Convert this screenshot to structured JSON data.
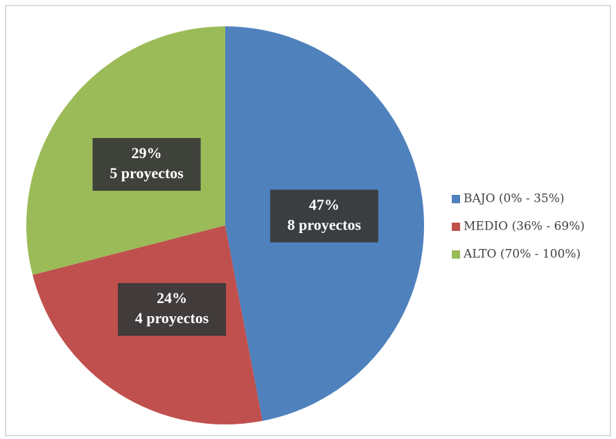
{
  "chart_data": {
    "type": "pie",
    "categories": [
      "BAJO (0% - 35%)",
      "MEDIO (36% - 69%)",
      "ALTO (70% - 100%)"
    ],
    "values": [
      47,
      24,
      29
    ],
    "value_labels": [
      "47%",
      "24%",
      "29%"
    ],
    "detail_labels": [
      "8 proyectos",
      "4 proyectos",
      "5 proyectos"
    ],
    "colors": [
      "#4f81bd",
      "#c0504d",
      "#9bbb59"
    ],
    "legend": "right"
  }
}
